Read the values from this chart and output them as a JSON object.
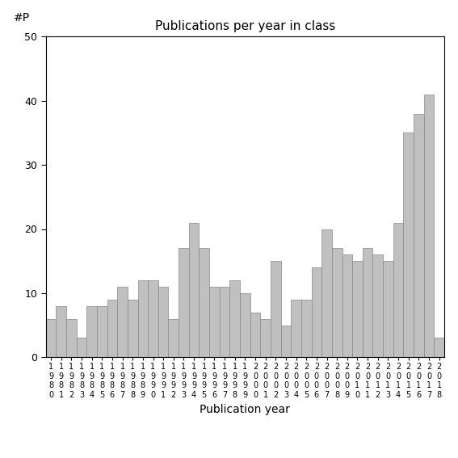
{
  "title": "Publications per year in class",
  "xlabel": "Publication year",
  "ylabel": "#P",
  "years": [
    1980,
    1981,
    1982,
    1983,
    1984,
    1985,
    1986,
    1987,
    1988,
    1989,
    1990,
    1991,
    1992,
    1993,
    1994,
    1995,
    1996,
    1997,
    1998,
    1999,
    2000,
    2001,
    2002,
    2003,
    2004,
    2005,
    2006,
    2007,
    2008,
    2009,
    2010,
    2011,
    2012,
    2013,
    2014,
    2015,
    2016,
    2017
  ],
  "values": [
    6,
    8,
    6,
    3,
    8,
    8,
    9,
    11,
    9,
    12,
    12,
    11,
    6,
    17,
    21,
    17,
    11,
    11,
    12,
    10,
    7,
    6,
    15,
    5,
    9,
    9,
    14,
    20,
    17,
    16,
    15,
    17,
    16,
    15,
    21,
    35,
    38,
    41
  ],
  "extra_bar": 3,
  "bar_color": "#c0c0c0",
  "bar_edgecolor": "#888888",
  "ylim": [
    0,
    50
  ],
  "yticks": [
    0,
    10,
    20,
    30,
    40,
    50
  ],
  "figsize": [
    5.67,
    5.67
  ],
  "dpi": 100
}
